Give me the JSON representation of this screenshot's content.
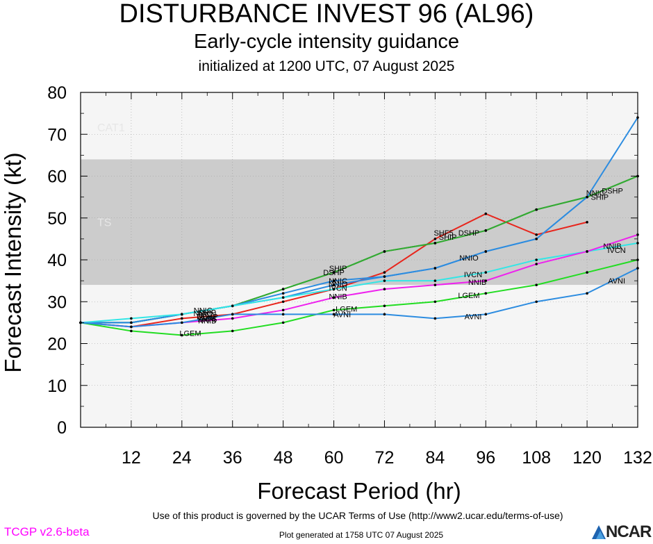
{
  "header": {
    "title": "DISTURBANCE INVEST 96 (AL96)",
    "subtitle": "Early-cycle intensity guidance",
    "init": "initialized at 1200 UTC, 07 August 2025"
  },
  "footer": {
    "terms": "Use of this product is governed by the UCAR Terms of Use (http://www2.ucar.edu/terms-of-use)",
    "version": "TCGP v2.6-beta",
    "generated": "Plot generated at 1758 UTC   07 August 2025",
    "logo": "NCAR"
  },
  "chart_data": {
    "type": "line",
    "xlabel": "Forecast Period (hr)",
    "ylabel": "Forecast Intensity (kt)",
    "xlim": [
      0,
      132
    ],
    "ylim": [
      0,
      80
    ],
    "xticks": [
      12,
      24,
      36,
      48,
      60,
      72,
      84,
      96,
      108,
      120,
      132
    ],
    "yticks": [
      0,
      10,
      20,
      30,
      40,
      50,
      60,
      70,
      80
    ],
    "bands": [
      {
        "label": "CAT1",
        "from": 64,
        "to": 80,
        "color": "#f5f5f5"
      },
      {
        "label": "TS",
        "from": 34,
        "to": 64,
        "color": "#cccccc"
      },
      {
        "label": "",
        "from": 0,
        "to": 34,
        "color": "#f5f5f5"
      }
    ],
    "series": [
      {
        "name": "SHF5",
        "color": "#e8251c",
        "x": [
          0,
          12,
          24,
          36,
          48,
          60,
          72,
          84,
          96,
          108,
          120
        ],
        "y": [
          25,
          24,
          26,
          27,
          30,
          33,
          37,
          45,
          51,
          46,
          49
        ]
      },
      {
        "name": "SHIP",
        "color": "#33aa33",
        "x": [
          0,
          12,
          24,
          36,
          48,
          60,
          72,
          84,
          96,
          108,
          120,
          132
        ],
        "y": [
          25,
          25,
          27,
          29,
          33,
          37,
          42,
          44,
          47,
          52,
          55,
          60
        ]
      },
      {
        "name": "DSHP",
        "color": "#33aa33",
        "x": [
          0,
          12,
          24,
          36,
          48,
          60,
          72,
          84,
          96,
          108,
          120,
          132
        ],
        "y": [
          25,
          25,
          27,
          29,
          33,
          37,
          42,
          44,
          47,
          52,
          55,
          60
        ]
      },
      {
        "name": "NNIC",
        "color": "#2c8ce0",
        "x": [
          0,
          12,
          24,
          36,
          48,
          60,
          72,
          84,
          96,
          108,
          120,
          132
        ],
        "y": [
          25,
          25,
          27,
          29,
          32,
          35,
          36,
          38,
          42,
          45,
          55,
          74
        ]
      },
      {
        "name": "NNIO",
        "color": "#2c8ce0",
        "x": [
          0,
          12,
          24,
          36,
          48,
          60,
          72,
          84,
          96,
          108,
          120
        ],
        "y": [
          25,
          25,
          27,
          29,
          31,
          34,
          36,
          38,
          42,
          45,
          55
        ]
      },
      {
        "name": "IVCN",
        "color": "#33e6e6",
        "x": [
          0,
          12,
          24,
          36,
          48,
          60,
          72,
          84,
          96,
          108,
          120,
          132
        ],
        "y": [
          25,
          26,
          27,
          29,
          31,
          33,
          35,
          35,
          37,
          40,
          42,
          44
        ]
      },
      {
        "name": "NNIB",
        "color": "#ee22ee",
        "x": [
          0,
          12,
          24,
          36,
          48,
          60,
          72,
          84,
          96,
          108,
          120,
          132
        ],
        "y": [
          25,
          24,
          25,
          26,
          28,
          31,
          33,
          34,
          35,
          39,
          42,
          46
        ]
      },
      {
        "name": "LGEM",
        "color": "#22dd22",
        "x": [
          0,
          12,
          24,
          36,
          48,
          60,
          72,
          84,
          96,
          108,
          120,
          132
        ],
        "y": [
          25,
          23,
          22,
          23,
          25,
          28,
          29,
          30,
          32,
          34,
          37,
          40
        ]
      },
      {
        "name": "AVNI",
        "color": "#2c8ce0",
        "x": [
          0,
          12,
          24,
          36,
          48,
          60,
          72,
          84,
          96,
          108,
          120,
          132
        ],
        "y": [
          25,
          24,
          25,
          27,
          27,
          27,
          27,
          26,
          27,
          30,
          32,
          38
        ]
      }
    ],
    "labels": [
      {
        "text": "LGEM",
        "x": 26,
        "y": 22.5
      },
      {
        "text": "AVNI",
        "x": 30,
        "y": 26
      },
      {
        "text": "NNIB",
        "x": 30,
        "y": 25.5
      },
      {
        "text": "IVCN",
        "x": 30,
        "y": 27
      },
      {
        "text": "DSHP",
        "x": 30,
        "y": 26.5
      },
      {
        "text": "SHIP",
        "x": 30,
        "y": 27.5
      },
      {
        "text": "NNIC",
        "x": 29,
        "y": 28
      },
      {
        "text": "NNIO",
        "x": 29,
        "y": 27.2
      },
      {
        "text": "SHF5",
        "x": 30,
        "y": 25.8
      },
      {
        "text": "DSHP",
        "x": 60,
        "y": 37
      },
      {
        "text": "SHIP",
        "x": 61,
        "y": 38
      },
      {
        "text": "NNIC",
        "x": 61,
        "y": 35
      },
      {
        "text": "NNIO",
        "x": 61,
        "y": 34.3
      },
      {
        "text": "IVCN",
        "x": 61,
        "y": 33.3
      },
      {
        "text": "NNIB",
        "x": 61,
        "y": 31.3
      },
      {
        "text": "LGEM",
        "x": 63,
        "y": 28.3
      },
      {
        "text": "AVNI",
        "x": 62,
        "y": 27
      },
      {
        "text": "SHF5",
        "x": 86,
        "y": 46.5
      },
      {
        "text": "DSHP",
        "x": 92,
        "y": 46.5
      },
      {
        "text": "SHIP",
        "x": 87,
        "y": 45.5
      },
      {
        "text": "NNIO",
        "x": 92,
        "y": 40.5
      },
      {
        "text": "IVCN",
        "x": 93,
        "y": 36.5
      },
      {
        "text": "NNIB",
        "x": 94,
        "y": 34.7
      },
      {
        "text": "LGEM",
        "x": 92,
        "y": 31.5
      },
      {
        "text": "AVNI",
        "x": 93,
        "y": 26.5
      },
      {
        "text": "NNIC",
        "x": 122,
        "y": 56
      },
      {
        "text": "DSHP",
        "x": 126,
        "y": 56.5
      },
      {
        "text": "SHIP",
        "x": 123,
        "y": 55
      },
      {
        "text": "NNIB",
        "x": 126,
        "y": 43.3
      },
      {
        "text": "IVCN",
        "x": 127,
        "y": 42.3
      },
      {
        "text": "AVNI",
        "x": 127,
        "y": 35
      }
    ]
  }
}
